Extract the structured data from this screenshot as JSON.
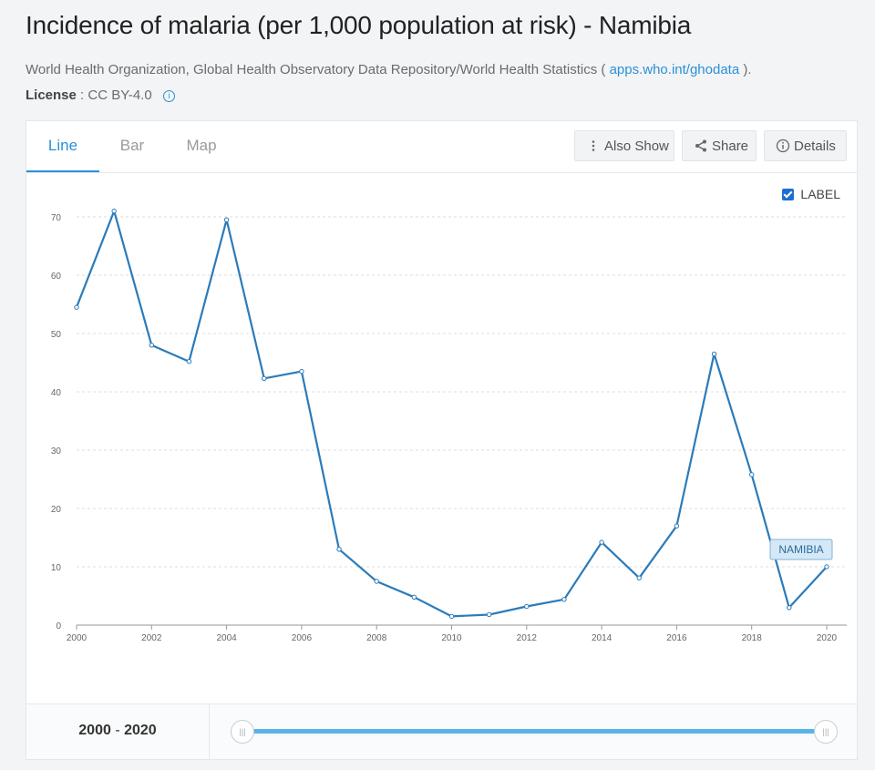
{
  "title": "Incidence of malaria (per 1,000 population at risk) - Namibia",
  "source": {
    "text": "World Health Organization, Global Health Observatory Data Repository/World Health Statistics (",
    "link": "apps.who.int/ghodata",
    "suffix": ")."
  },
  "license": {
    "label": "License",
    "value": ": CC BY-4.0"
  },
  "tabs": [
    "Line",
    "Bar",
    "Map"
  ],
  "toolbar": {
    "also_show": "Also Show",
    "share": "Share",
    "details": "Details"
  },
  "label_toggle": "LABEL",
  "range": {
    "start": "2000",
    "sep": "-",
    "end": "2020"
  },
  "colors": {
    "line": "#2b7bb9",
    "accent": "#2a90d6",
    "label_bg": "#d4e8f6"
  },
  "chart_data": {
    "type": "line",
    "series": [
      {
        "name": "NAMIBIA",
        "x": [
          2000,
          2001,
          2002,
          2003,
          2004,
          2005,
          2006,
          2007,
          2008,
          2009,
          2010,
          2011,
          2012,
          2013,
          2014,
          2015,
          2016,
          2017,
          2018,
          2019,
          2020
        ],
        "values": [
          54.5,
          71,
          48,
          45.2,
          69.5,
          42.3,
          43.5,
          13,
          7.5,
          4.8,
          1.5,
          1.8,
          3.2,
          4.4,
          14.2,
          8.1,
          17,
          46.5,
          25.8,
          3,
          10
        ]
      }
    ],
    "xlim": [
      2000,
      2020
    ],
    "ylim": [
      0,
      70
    ],
    "xticks": [
      "2000",
      "2002",
      "2004",
      "2006",
      "2008",
      "2010",
      "2012",
      "2014",
      "2016",
      "2018",
      "2020"
    ],
    "yticks": [
      "0",
      "10",
      "20",
      "30",
      "40",
      "50",
      "60",
      "70"
    ],
    "grid": true
  }
}
